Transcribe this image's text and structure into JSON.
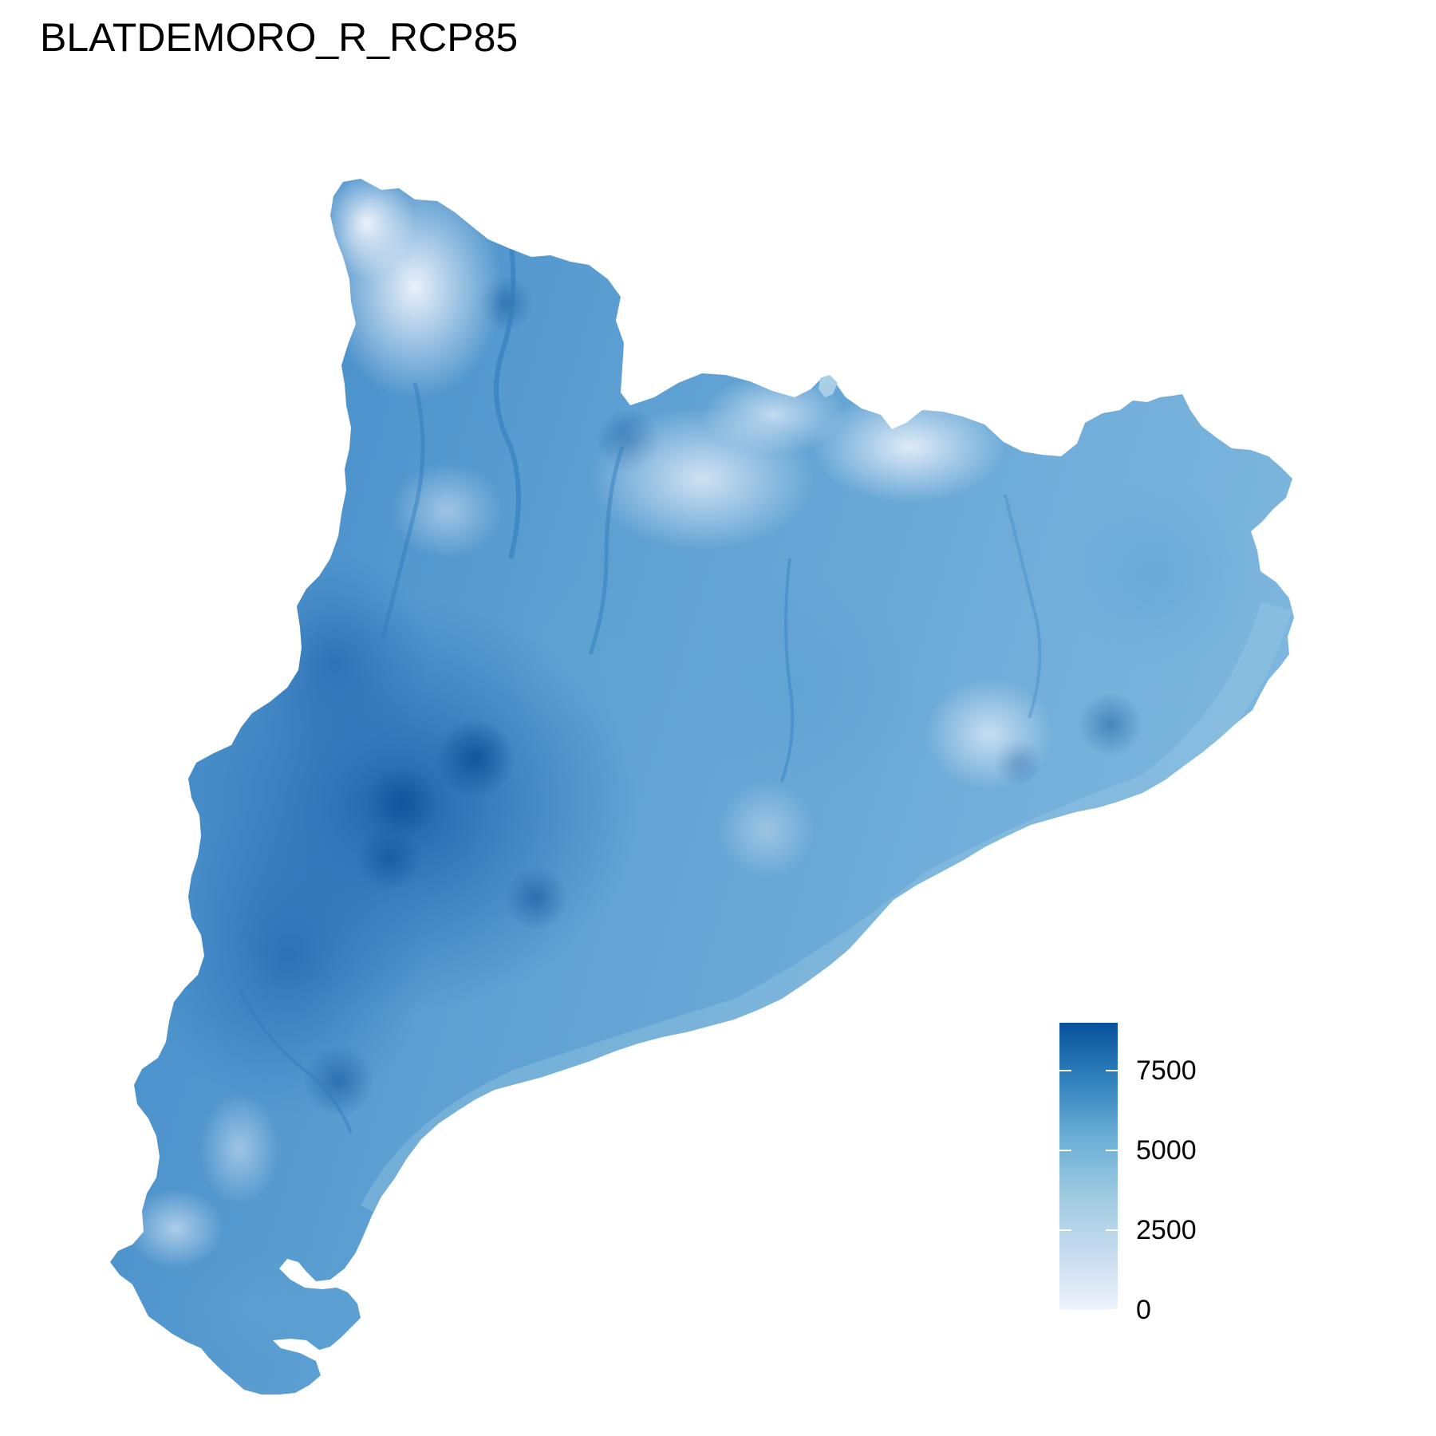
{
  "title": "BLATDEMORO_R_RCP85",
  "legend": {
    "min": 0,
    "max": 9000,
    "ticks": [
      {
        "value": 0,
        "label": "0"
      },
      {
        "value": 2500,
        "label": "2500"
      },
      {
        "value": 5000,
        "label": "5000"
      },
      {
        "value": 7500,
        "label": "7500"
      }
    ],
    "colors": [
      "#eef3fc",
      "#c6dbef",
      "#9ecae1",
      "#6baed6",
      "#3182bd",
      "#08519c"
    ]
  },
  "map": {
    "fill_low": "#eef3fc",
    "fill_mid": "#8ec0df",
    "fill_high": "#2b72b8",
    "fill_peak": "#0d4f96"
  }
}
